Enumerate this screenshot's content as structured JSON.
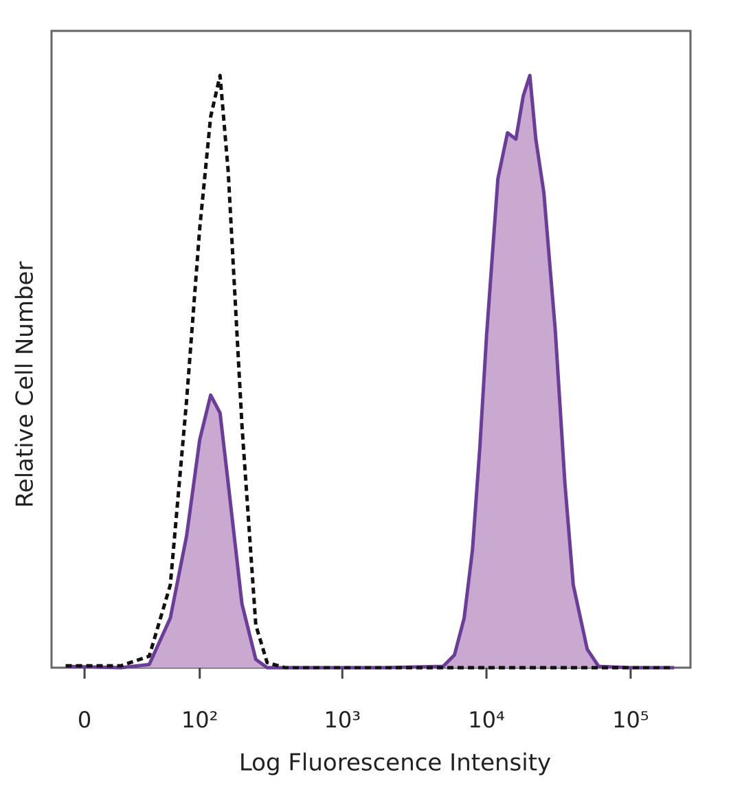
{
  "chart_data": {
    "type": "line",
    "xlabel": "Log Fluorescence Intensity",
    "ylabel": "Relative Cell Number",
    "xscale": "biexponential",
    "xlim": [
      -18,
      260000
    ],
    "xticks": [
      0,
      {
        "value": 100,
        "label": "10²"
      },
      {
        "value": 1000,
        "label": "10³"
      },
      {
        "value": 10000,
        "label": "10⁴"
      },
      {
        "value": 100000,
        "label": "10⁵"
      }
    ],
    "ylim": [
      0,
      100
    ],
    "x": [
      -10,
      20,
      40,
      60,
      80,
      100,
      120,
      140,
      160,
      200,
      250,
      300,
      400,
      1000,
      2000,
      5000,
      6000,
      7000,
      8000,
      9000,
      10000,
      12000,
      14000,
      16000,
      18000,
      20000,
      22000,
      25000,
      30000,
      35000,
      40000,
      50000,
      60000,
      100000,
      200000
    ],
    "series": [
      {
        "color": "#6a3d9a",
        "fill": "#c9a9cf",
        "dash": false,
        "values": [
          0.2,
          0,
          0.5,
          7.8,
          20.7,
          35.8,
          42.8,
          40,
          29,
          10,
          1.3,
          0,
          0,
          0,
          0,
          0.2,
          2,
          7.8,
          18.5,
          34.7,
          52,
          76.8,
          84,
          83,
          89.8,
          93,
          83,
          74.6,
          53,
          29,
          13,
          2.9,
          0.2,
          0,
          0
        ]
      },
      {
        "color": "#111111",
        "dash": true,
        "values": [
          0.3,
          0.3,
          1.8,
          13,
          42,
          69,
          86.5,
          93,
          78,
          38,
          6.7,
          0.8,
          0,
          0,
          0,
          0,
          0,
          0,
          0,
          0,
          0,
          0,
          0,
          0,
          0,
          0,
          0,
          0,
          0,
          0,
          0,
          0,
          0,
          0,
          0
        ]
      }
    ]
  }
}
